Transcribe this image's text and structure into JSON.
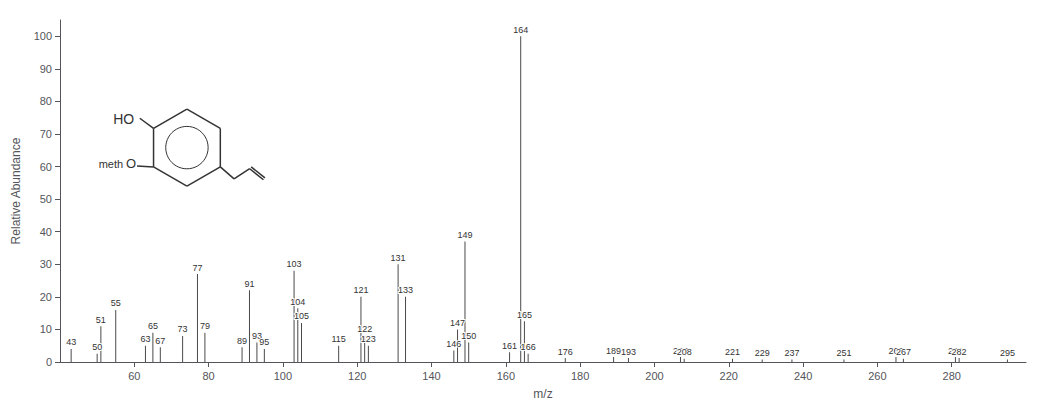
{
  "chart_data": {
    "type": "stem",
    "xlabel": "m/z",
    "ylabel": "Relative Abundance",
    "x": [
      43,
      50,
      51,
      55,
      63,
      65,
      67,
      73,
      77,
      79,
      89,
      91,
      93,
      95,
      103,
      104,
      105,
      115,
      121,
      122,
      123,
      131,
      133,
      146,
      147,
      149,
      150,
      161,
      164,
      165,
      166,
      176,
      189,
      193,
      207,
      208,
      221,
      229,
      237,
      251,
      265,
      267,
      281,
      282,
      295
    ],
    "values": [
      4.0,
      2.5,
      11.0,
      16.0,
      5.0,
      9.0,
      4.5,
      8.0,
      27.0,
      9.0,
      4.5,
      22.0,
      6.0,
      4.0,
      28.0,
      16.5,
      12.0,
      5.0,
      20.0,
      8.0,
      5.0,
      30.0,
      20.0,
      3.5,
      10.0,
      37.0,
      6.0,
      3.0,
      100.0,
      12.5,
      2.5,
      1.2,
      1.5,
      1.2,
      1.5,
      1.0,
      1.0,
      0.8,
      0.8,
      0.8,
      1.5,
      1.0,
      1.5,
      1.2,
      0.8
    ],
    "labels": [
      "43",
      "50",
      "51",
      "55",
      "63",
      "65",
      "67",
      "73",
      "77",
      "79",
      "89",
      "91",
      "93",
      "95",
      "103",
      "104",
      "105",
      "115",
      "121",
      "122",
      "123",
      "131",
      "133",
      "146",
      "147",
      "149",
      "150",
      "161",
      "164",
      "165",
      "166",
      "176",
      "189",
      "193",
      "207",
      "208",
      "221",
      "229",
      "237",
      "251",
      "265",
      "267",
      "281",
      "282",
      "295"
    ],
    "color": "#4a4a4a",
    "xlim": [
      40,
      300
    ],
    "ylim": [
      0,
      105
    ],
    "xticks": [
      60,
      80,
      100,
      120,
      140,
      160,
      180,
      200,
      220,
      240,
      260,
      280
    ],
    "yticks": [
      0,
      10,
      20,
      30,
      40,
      50,
      60,
      70,
      80,
      90,
      100
    ],
    "grid": false,
    "annotations": [
      "HO",
      "O",
      "meth"
    ]
  }
}
